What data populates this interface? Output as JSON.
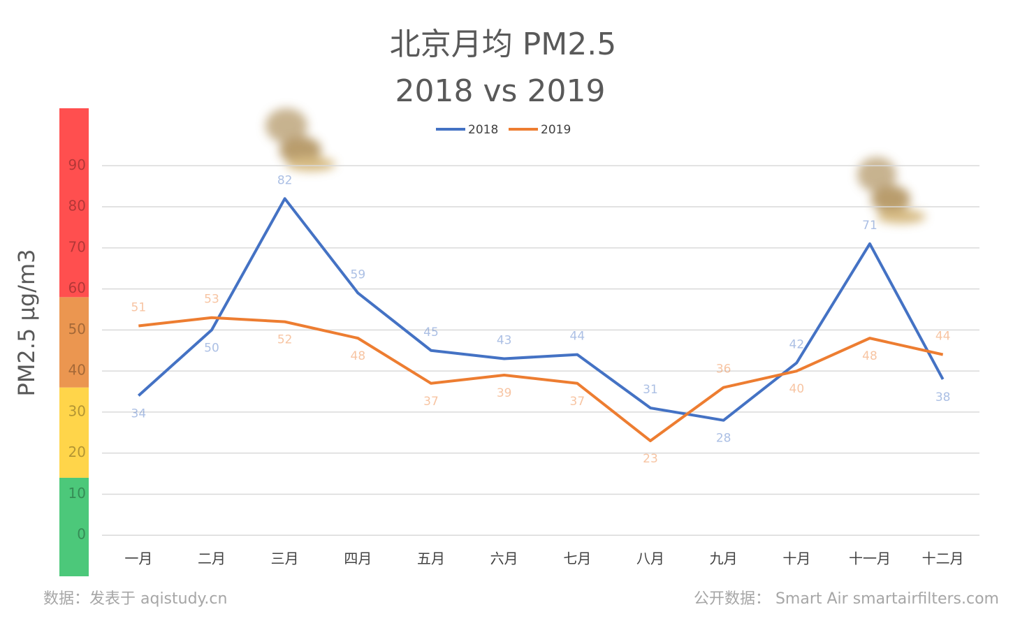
{
  "chart_data": {
    "type": "line",
    "title": "北京月均 PM2.5",
    "subtitle": "2018 vs 2019",
    "y_label": "PM2.5  μg/m3",
    "categories": [
      "一月",
      "二月",
      "三月",
      "四月",
      "五月",
      "六月",
      "七月",
      "八月",
      "九月",
      "十月",
      "十一月",
      "十二月"
    ],
    "series": [
      {
        "name": "2018",
        "color": "#4472c4",
        "values": [
          34,
          50,
          82,
          59,
          45,
          43,
          44,
          31,
          28,
          42,
          71,
          38
        ]
      },
      {
        "name": "2019",
        "color": "#ed7d31",
        "values": [
          51,
          53,
          52,
          48,
          37,
          39,
          37,
          23,
          36,
          40,
          48,
          44
        ]
      }
    ],
    "ylim": [
      -10,
      104
    ],
    "yticks": [
      0,
      10,
      20,
      30,
      40,
      50,
      60,
      70,
      80,
      90
    ],
    "grid": true,
    "legend": "top",
    "bands": [
      {
        "from": -10,
        "to": 14,
        "color": "#4cc87a"
      },
      {
        "from": 14,
        "to": 36,
        "color": "#ffd54a"
      },
      {
        "from": 36,
        "to": 58,
        "color": "#eb9650"
      },
      {
        "from": 58,
        "to": 104,
        "color": "#ff4f4f"
      }
    ],
    "source_left": "数据：发表于 aqistudy.cn",
    "source_right": "公开数据：  Smart Air smartairfilters.com"
  }
}
